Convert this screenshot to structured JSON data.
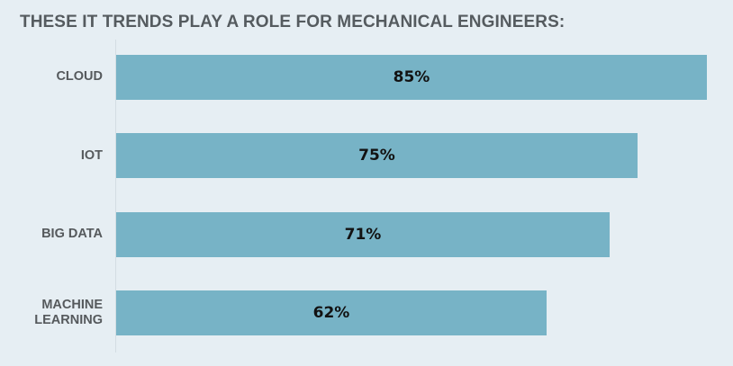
{
  "chart_data": {
    "type": "bar",
    "orientation": "horizontal",
    "title": "THESE IT TRENDS PLAY A ROLE FOR MECHANICAL ENGINEERS:",
    "categories": [
      "CLOUD",
      "IOT",
      "BIG DATA",
      "MACHINE\nLEARNING"
    ],
    "values": [
      85,
      75,
      71,
      62
    ],
    "value_labels": [
      "85%",
      "75%",
      "71%",
      "62%"
    ],
    "xlim": [
      0,
      85
    ],
    "grid": false,
    "legend": "none",
    "bar_color": "#77b3c6",
    "background_color": "#e6eef3"
  }
}
